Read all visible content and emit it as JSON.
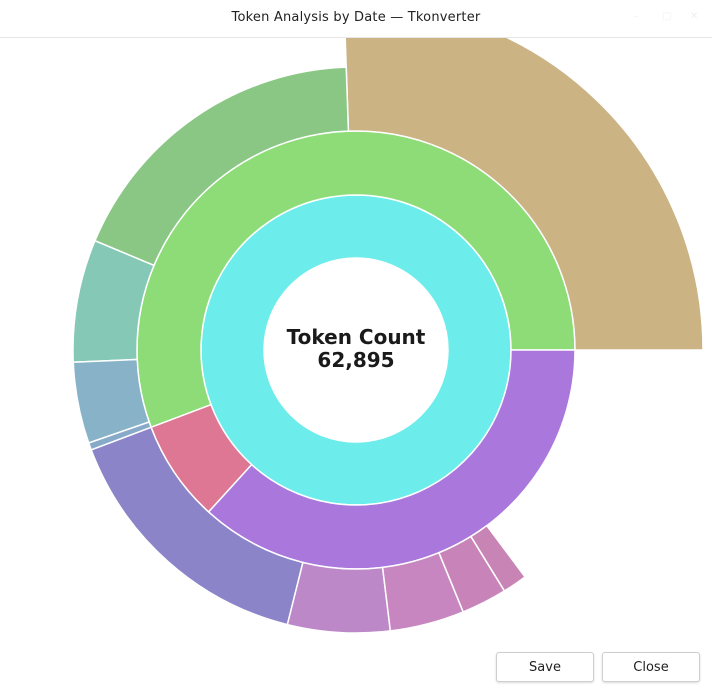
{
  "window": {
    "title": "Token Analysis by Date — Tkonverter"
  },
  "buttons": {
    "save": "Save",
    "close": "Close"
  },
  "chart_data": {
    "type": "sunburst",
    "center_label": "Token Count",
    "center_value": "62,895",
    "total": 62895,
    "rings": [
      [
        {
          "value": 62895,
          "color": "#6ceceb"
        }
      ],
      [
        {
          "value": 35060,
          "color": "#8ddc78"
        },
        {
          "value": 4720,
          "color": "#de7793"
        },
        {
          "value": 23115,
          "color": "#aa78dc"
        }
      ],
      [
        {
          "value": 16070,
          "color": "#cbb384"
        },
        {
          "value": 11410,
          "color": "#8ac785"
        },
        {
          "value": 4400,
          "color": "#86c8b6"
        },
        {
          "value": 2920,
          "color": "#87b2c8"
        },
        {
          "value": 260,
          "color": "#87aac8"
        },
        {
          "value": 0,
          "color": null
        },
        {
          "value": 0,
          "color": null
        },
        {
          "value": 9660,
          "color": "#8c84c8"
        },
        {
          "value": 3670,
          "color": "#bc88c8"
        },
        {
          "value": 2670,
          "color": "#c886c0"
        },
        {
          "value": 1640,
          "color": "#c884b8"
        },
        {
          "value": 880,
          "color": "#c884b4"
        }
      ]
    ]
  }
}
